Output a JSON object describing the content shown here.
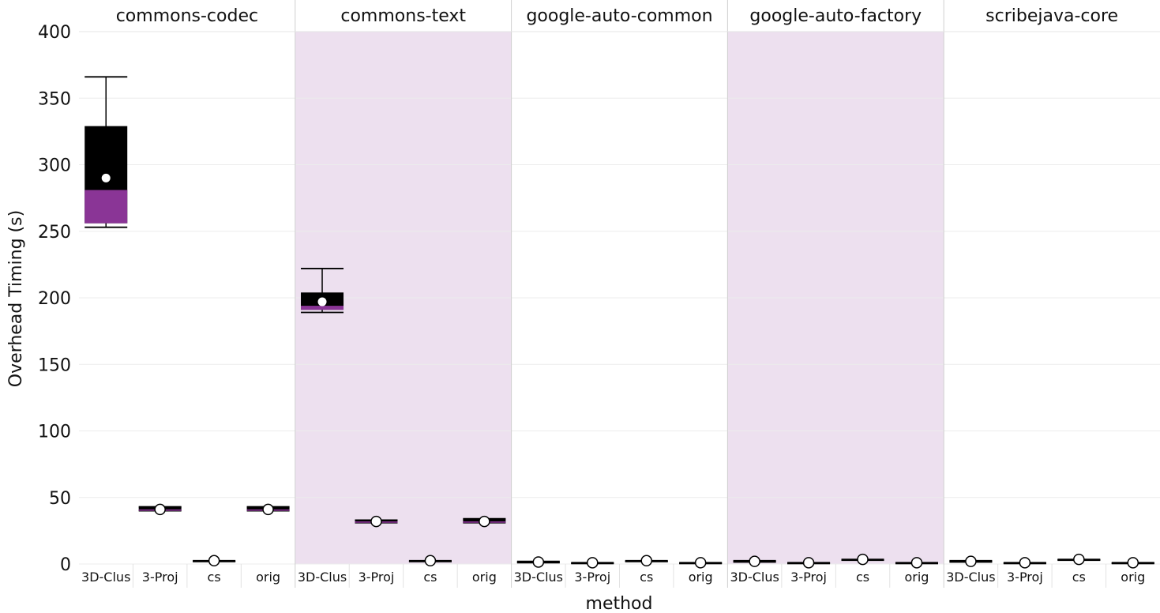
{
  "chart_data": {
    "type": "box",
    "ylabel": "Overhead Timing (s)",
    "xlabel": "method",
    "ylim": [
      0,
      400
    ],
    "yticks": [
      0,
      50,
      100,
      150,
      200,
      250,
      300,
      350,
      400
    ],
    "categories": [
      "3D-Clus",
      "3-Proj",
      "cs",
      "orig"
    ],
    "colors": {
      "box": "#000000",
      "median_band": "#8a3596",
      "mean_marker": "#ffffff",
      "facet_shade": "#ede0ef",
      "grid": "#ececec",
      "divider": "#cfcfcf"
    },
    "facets": [
      {
        "title": "commons-codec",
        "shaded": false,
        "boxes": [
          {
            "method": "3D-Clus",
            "min": 253,
            "q1": 256,
            "median": 281,
            "q3": 329,
            "max": 366,
            "mean": 290
          },
          {
            "method": "3-Proj",
            "min": 40,
            "q1": 40,
            "median": 41,
            "q3": 43,
            "max": 43,
            "mean": 41
          },
          {
            "method": "cs",
            "min": 2,
            "q1": 2,
            "median": 2,
            "q3": 2.5,
            "max": 2.5,
            "mean": 2.5
          },
          {
            "method": "orig",
            "min": 40,
            "q1": 40,
            "median": 41,
            "q3": 43,
            "max": 43,
            "mean": 41
          }
        ]
      },
      {
        "title": "commons-text",
        "shaded": true,
        "boxes": [
          {
            "method": "3D-Clus",
            "min": 189,
            "q1": 191,
            "median": 194,
            "q3": 204,
            "max": 222,
            "mean": 197
          },
          {
            "method": "3-Proj",
            "min": 31,
            "q1": 31,
            "median": 32,
            "q3": 33,
            "max": 33,
            "mean": 32
          },
          {
            "method": "cs",
            "min": 2,
            "q1": 2,
            "median": 2,
            "q3": 2.5,
            "max": 2.5,
            "mean": 2.5
          },
          {
            "method": "orig",
            "min": 31,
            "q1": 31,
            "median": 32,
            "q3": 34,
            "max": 34,
            "mean": 32
          }
        ]
      },
      {
        "title": "google-auto-common",
        "shaded": false,
        "boxes": [
          {
            "method": "3D-Clus",
            "min": 1,
            "q1": 1,
            "median": 1.5,
            "q3": 2,
            "max": 2,
            "mean": 1.5
          },
          {
            "method": "3-Proj",
            "min": 0.5,
            "q1": 0.5,
            "median": 1,
            "q3": 1,
            "max": 1,
            "mean": 1
          },
          {
            "method": "cs",
            "min": 2,
            "q1": 2,
            "median": 2,
            "q3": 2.5,
            "max": 2.5,
            "mean": 2.5
          },
          {
            "method": "orig",
            "min": 0.5,
            "q1": 0.5,
            "median": 1,
            "q3": 1,
            "max": 1,
            "mean": 1
          }
        ]
      },
      {
        "title": "google-auto-factory",
        "shaded": true,
        "boxes": [
          {
            "method": "3D-Clus",
            "min": 1.5,
            "q1": 1.5,
            "median": 2,
            "q3": 2.5,
            "max": 2.5,
            "mean": 2
          },
          {
            "method": "3-Proj",
            "min": 0.5,
            "q1": 0.5,
            "median": 1,
            "q3": 1,
            "max": 1,
            "mean": 1
          },
          {
            "method": "cs",
            "min": 3,
            "q1": 3,
            "median": 3,
            "q3": 3.5,
            "max": 3.5,
            "mean": 3.5
          },
          {
            "method": "orig",
            "min": 0.5,
            "q1": 0.5,
            "median": 1,
            "q3": 1,
            "max": 1,
            "mean": 1
          }
        ]
      },
      {
        "title": "scribejava-core",
        "shaded": false,
        "boxes": [
          {
            "method": "3D-Clus",
            "min": 1.5,
            "q1": 1.5,
            "median": 2,
            "q3": 2.5,
            "max": 2.5,
            "mean": 2
          },
          {
            "method": "3-Proj",
            "min": 0.5,
            "q1": 0.5,
            "median": 1,
            "q3": 1,
            "max": 1,
            "mean": 1
          },
          {
            "method": "cs",
            "min": 3,
            "q1": 3,
            "median": 3,
            "q3": 3.5,
            "max": 3.5,
            "mean": 3.5
          },
          {
            "method": "orig",
            "min": 0.5,
            "q1": 0.5,
            "median": 1,
            "q3": 1,
            "max": 1,
            "mean": 1
          }
        ]
      }
    ]
  }
}
